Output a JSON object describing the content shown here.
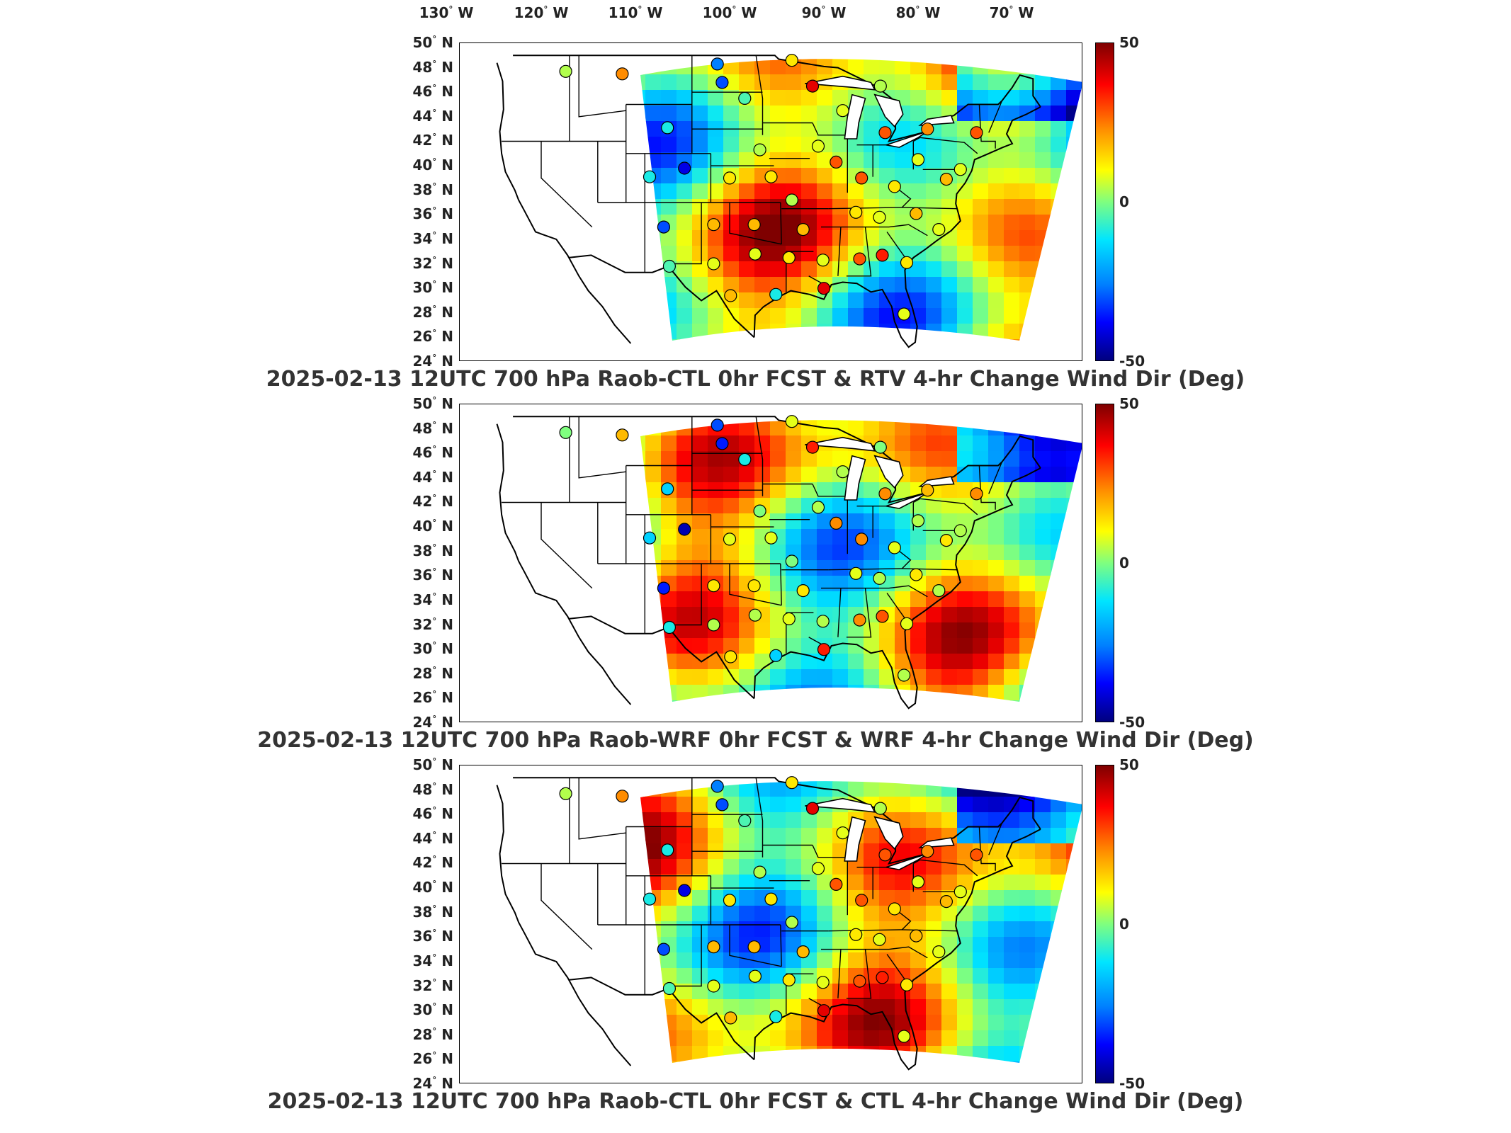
{
  "lon_labels": [
    {
      "deg": "130",
      "dir": "W"
    },
    {
      "deg": "120",
      "dir": "W"
    },
    {
      "deg": "110",
      "dir": "W"
    },
    {
      "deg": "100",
      "dir": "W"
    },
    {
      "deg": "90",
      "dir": "W"
    },
    {
      "deg": "80",
      "dir": "W"
    },
    {
      "deg": "70",
      "dir": "W"
    }
  ],
  "lat_labels": [
    {
      "deg": "50",
      "dir": "N"
    },
    {
      "deg": "48",
      "dir": "N"
    },
    {
      "deg": "46",
      "dir": "N"
    },
    {
      "deg": "44",
      "dir": "N"
    },
    {
      "deg": "42",
      "dir": "N"
    },
    {
      "deg": "40",
      "dir": "N"
    },
    {
      "deg": "38",
      "dir": "N"
    },
    {
      "deg": "36",
      "dir": "N"
    },
    {
      "deg": "34",
      "dir": "N"
    },
    {
      "deg": "32",
      "dir": "N"
    },
    {
      "deg": "30",
      "dir": "N"
    },
    {
      "deg": "28",
      "dir": "N"
    },
    {
      "deg": "26",
      "dir": "N"
    },
    {
      "deg": "24",
      "dir": "N"
    }
  ],
  "colorbar": {
    "max_label": "50",
    "mid_label": "0",
    "min_label": "-50",
    "range": [
      -50,
      50
    ],
    "colormap": [
      "#00007f",
      "#0000ff",
      "#0080ff",
      "#00e5ff",
      "#7fff7f",
      "#ffff00",
      "#ff8c00",
      "#ff0000",
      "#7f0000"
    ]
  },
  "panels": [
    {
      "title": "2025-02-13 12UTC 700 hPa Raob-CTL 0hr FCST & RTV 4-hr Change Wind Dir (Deg)"
    },
    {
      "title": "2025-02-13 12UTC 700 hPa Raob-WRF 0hr FCST & WRF 4-hr Change Wind Dir (Deg)"
    },
    {
      "title": "2025-02-13 12UTC 700 hPa Raob-CTL 0hr FCST & CTL 4-hr Change Wind Dir (Deg)"
    }
  ],
  "raob_stations": [
    {
      "lon": -117.4,
      "lat": 47.7,
      "value": 5
    },
    {
      "lon": -111.4,
      "lat": 47.5,
      "value": 25
    },
    {
      "lon": -101.3,
      "lat": 48.3,
      "value": -25
    },
    {
      "lon": -93.4,
      "lat": 48.6,
      "value": 15
    },
    {
      "lon": -106.6,
      "lat": 43.1,
      "value": -10
    },
    {
      "lon": -100.8,
      "lat": 46.8,
      "value": -30
    },
    {
      "lon": -98.4,
      "lat": 45.5,
      "value": -5
    },
    {
      "lon": -91.2,
      "lat": 46.5,
      "value": 40
    },
    {
      "lon": -84.0,
      "lat": 46.5,
      "value": 5
    },
    {
      "lon": -88.0,
      "lat": 44.5,
      "value": 10
    },
    {
      "lon": -96.8,
      "lat": 41.3,
      "value": 5
    },
    {
      "lon": -90.6,
      "lat": 41.6,
      "value": 10
    },
    {
      "lon": -88.7,
      "lat": 40.3,
      "value": 30
    },
    {
      "lon": -83.5,
      "lat": 42.7,
      "value": 30
    },
    {
      "lon": -79.0,
      "lat": 43.0,
      "value": 25
    },
    {
      "lon": -73.8,
      "lat": 42.7,
      "value": 30
    },
    {
      "lon": -108.5,
      "lat": 39.1,
      "value": -10
    },
    {
      "lon": -104.8,
      "lat": 39.8,
      "value": -40
    },
    {
      "lon": -100.0,
      "lat": 39.0,
      "value": 15
    },
    {
      "lon": -95.6,
      "lat": 39.1,
      "value": 15
    },
    {
      "lon": -93.4,
      "lat": 37.2,
      "value": 5
    },
    {
      "lon": -86.0,
      "lat": 39.0,
      "value": 30
    },
    {
      "lon": -82.5,
      "lat": 38.3,
      "value": 15
    },
    {
      "lon": -80.0,
      "lat": 40.5,
      "value": 10
    },
    {
      "lon": -77.0,
      "lat": 38.9,
      "value": 20
    },
    {
      "lon": -75.5,
      "lat": 39.7,
      "value": 10
    },
    {
      "lon": -107.0,
      "lat": 35.0,
      "value": -30
    },
    {
      "lon": -101.7,
      "lat": 35.2,
      "value": 20
    },
    {
      "lon": -97.4,
      "lat": 35.2,
      "value": 20
    },
    {
      "lon": -92.2,
      "lat": 34.8,
      "value": 20
    },
    {
      "lon": -86.6,
      "lat": 36.2,
      "value": 15
    },
    {
      "lon": -84.1,
      "lat": 35.8,
      "value": 10
    },
    {
      "lon": -80.2,
      "lat": 36.1,
      "value": 20
    },
    {
      "lon": -77.8,
      "lat": 34.8,
      "value": 10
    },
    {
      "lon": -106.4,
      "lat": 31.8,
      "value": -5
    },
    {
      "lon": -101.7,
      "lat": 32.0,
      "value": 10
    },
    {
      "lon": -97.3,
      "lat": 32.8,
      "value": 10
    },
    {
      "lon": -93.7,
      "lat": 32.5,
      "value": 15
    },
    {
      "lon": -90.1,
      "lat": 32.3,
      "value": 10
    },
    {
      "lon": -86.2,
      "lat": 32.4,
      "value": 30
    },
    {
      "lon": -83.8,
      "lat": 32.7,
      "value": 35
    },
    {
      "lon": -81.2,
      "lat": 32.1,
      "value": 15
    },
    {
      "lon": -99.9,
      "lat": 29.4,
      "value": 20
    },
    {
      "lon": -95.1,
      "lat": 29.5,
      "value": -10
    },
    {
      "lon": -90.0,
      "lat": 30.0,
      "value": 40
    },
    {
      "lon": -81.5,
      "lat": 27.9,
      "value": 10
    }
  ]
}
